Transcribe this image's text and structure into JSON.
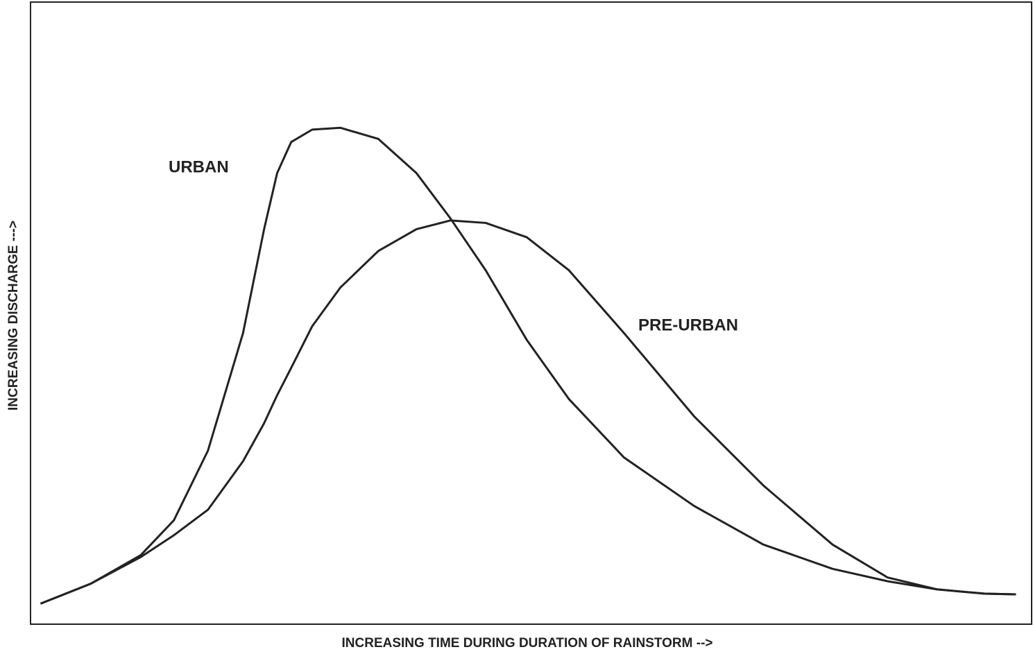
{
  "chart_data": {
    "type": "line",
    "xlabel": "INCREASING TIME DURING DURATION OF RAINSTORM -->",
    "ylabel": "INCREASING DISCHARGE --->",
    "annotations": [
      "URBAN",
      "PRE-URBAN"
    ],
    "x": [
      1,
      6,
      11,
      14.3,
      17.7,
      21.2,
      23.3,
      24.6,
      26,
      28.1,
      30.9,
      34.7,
      38.5,
      41.9,
      45.4,
      49.5,
      53.7,
      59.2,
      66.2,
      73.1,
      80,
      85.5,
      90.4,
      95.2,
      98.3
    ],
    "series": [
      {
        "name": "URBAN",
        "color": "#222222",
        "values": [
          3.3,
          6.5,
          11.1,
          16.7,
          27.9,
          46.8,
          63.5,
          72.5,
          77.5,
          79.5,
          79.8,
          78,
          72.5,
          65.2,
          56.9,
          45.7,
          36.2,
          26.8,
          19,
          12.8,
          8.9,
          6.9,
          5.6,
          4.9,
          4.8
        ]
      },
      {
        "name": "PRE-URBAN",
        "color": "#222222",
        "values": [
          3.3,
          6.5,
          10.8,
          14.3,
          18.4,
          26.2,
          32.3,
          36.8,
          41.2,
          47.9,
          54.1,
          60,
          63.5,
          64.9,
          64.5,
          62.2,
          56.9,
          46.8,
          33.4,
          22.3,
          12.8,
          7.5,
          5.6,
          4.9,
          4.8
        ]
      }
    ],
    "xlim": [
      0,
      100
    ],
    "ylim": [
      0,
      100
    ]
  }
}
